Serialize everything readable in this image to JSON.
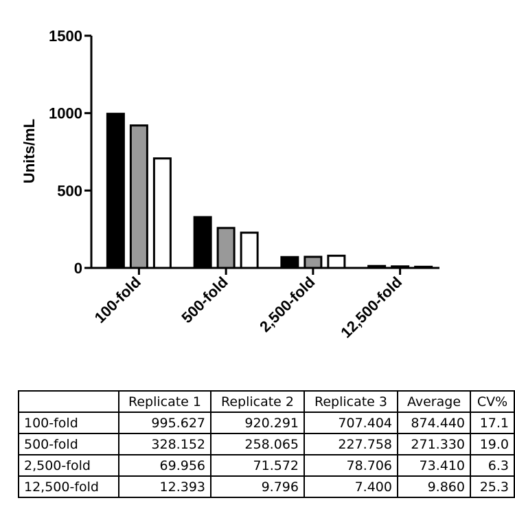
{
  "chart_data": {
    "type": "bar",
    "ylabel": "Units/mL",
    "ylim": [
      0,
      1500
    ],
    "yticks": [
      "0",
      "500",
      "1000",
      "1500"
    ],
    "categories": [
      "100-fold",
      "500-fold",
      "2,500-fold",
      "12,500-fold"
    ],
    "series": [
      {
        "values": [
          995.627,
          328.152,
          69.956,
          12.393
        ],
        "fill": "#000000"
      },
      {
        "values": [
          920.291,
          258.065,
          71.572,
          9.796
        ],
        "fill": "#999999"
      },
      {
        "values": [
          707.404,
          227.758,
          78.706,
          7.4
        ],
        "fill": "#ffffff"
      }
    ]
  },
  "table": {
    "headers": [
      "",
      "Replicate 1",
      "Replicate 2",
      "Replicate 3",
      "Average",
      "CV%"
    ],
    "rows": [
      [
        "100-fold",
        "995.627",
        "920.291",
        "707.404",
        "874.440",
        "17.1"
      ],
      [
        "500-fold",
        "328.152",
        "258.065",
        "227.758",
        "271.330",
        "19.0"
      ],
      [
        "2,500-fold",
        "69.956",
        "71.572",
        "78.706",
        "73.410",
        "6.3"
      ],
      [
        "12,500-fold",
        "12.393",
        "9.796",
        "7.400",
        "9.860",
        "25.3"
      ]
    ]
  }
}
